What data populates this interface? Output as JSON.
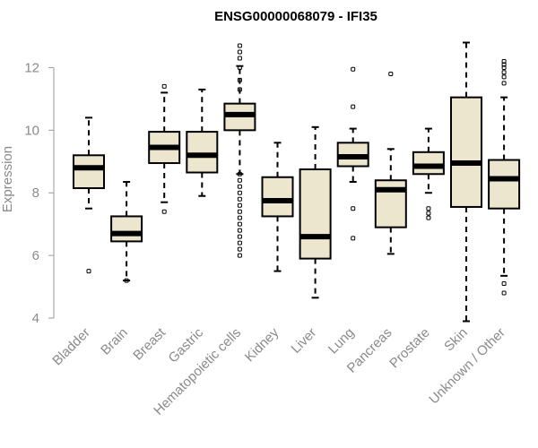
{
  "chart_data": {
    "type": "boxplot",
    "title": "ENSG00000068079 - IFI35",
    "xlabel": "",
    "ylabel": "Expression",
    "ylim": [
      4,
      12.9
    ],
    "yticks": [
      4,
      6,
      8,
      10,
      12
    ],
    "grid": false,
    "colors": {
      "box_fill": "#ede6cf",
      "stroke": "#000000",
      "axis": "#9a9a9a",
      "text_muted": "#8a8a8a"
    },
    "categories": [
      "Bladder",
      "Brain",
      "Breast",
      "Gastric",
      "Hematopoietic cells",
      "Kidney",
      "Liver",
      "Lung",
      "Pancreas",
      "Prostate",
      "Skin",
      "Unknown / Other"
    ],
    "boxes": [
      {
        "category": "Bladder",
        "whisker_low": 7.5,
        "q1": 8.15,
        "median": 8.8,
        "q3": 9.2,
        "whisker_high": 10.4,
        "outliers": [
          5.5
        ]
      },
      {
        "category": "Brain",
        "whisker_low": 5.2,
        "q1": 6.45,
        "median": 6.7,
        "q3": 7.25,
        "whisker_high": 8.35,
        "outliers": [
          5.2
        ]
      },
      {
        "category": "Breast",
        "whisker_low": 7.7,
        "q1": 8.95,
        "median": 9.45,
        "q3": 9.95,
        "whisker_high": 11.2,
        "outliers": [
          7.4,
          11.4
        ]
      },
      {
        "category": "Gastric",
        "whisker_low": 7.9,
        "q1": 8.65,
        "median": 9.2,
        "q3": 9.95,
        "whisker_high": 11.3,
        "outliers": []
      },
      {
        "category": "Hematopoietic cells",
        "whisker_low": 8.6,
        "q1": 10.0,
        "median": 10.5,
        "q3": 10.85,
        "whisker_high": 12.05,
        "outliers": [
          12.7,
          12.5,
          12.3,
          12.0,
          11.6,
          11.3,
          8.6,
          8.4,
          8.2,
          8.0,
          7.8,
          7.6,
          7.4,
          7.2,
          7.0,
          6.8,
          6.6,
          6.4,
          6.2,
          6.0
        ]
      },
      {
        "category": "Kidney",
        "whisker_low": 5.5,
        "q1": 7.25,
        "median": 7.75,
        "q3": 8.5,
        "whisker_high": 9.6,
        "outliers": []
      },
      {
        "category": "Liver",
        "whisker_low": 4.65,
        "q1": 5.9,
        "median": 6.6,
        "q3": 8.75,
        "whisker_high": 10.1,
        "outliers": []
      },
      {
        "category": "Lung",
        "whisker_low": 8.35,
        "q1": 8.85,
        "median": 9.15,
        "q3": 9.6,
        "whisker_high": 10.05,
        "outliers": [
          6.55,
          7.5,
          10.75,
          11.95
        ]
      },
      {
        "category": "Pancreas",
        "whisker_low": 6.05,
        "q1": 6.9,
        "median": 8.1,
        "q3": 8.4,
        "whisker_high": 9.4,
        "outliers": [
          11.8
        ]
      },
      {
        "category": "Prostate",
        "whisker_low": 8.0,
        "q1": 8.6,
        "median": 8.85,
        "q3": 9.3,
        "whisker_high": 10.05,
        "outliers": [
          7.2,
          7.35,
          7.5
        ]
      },
      {
        "category": "Skin",
        "whisker_low": 3.9,
        "q1": 7.55,
        "median": 8.95,
        "q3": 11.05,
        "whisker_high": 12.8,
        "outliers": []
      },
      {
        "category": "Unknown / Other",
        "whisker_low": 5.35,
        "q1": 7.5,
        "median": 8.45,
        "q3": 9.05,
        "whisker_high": 11.05,
        "outliers": [
          4.8,
          5.1,
          11.5,
          11.7,
          11.85,
          12.0,
          12.1,
          12.2
        ]
      }
    ]
  }
}
